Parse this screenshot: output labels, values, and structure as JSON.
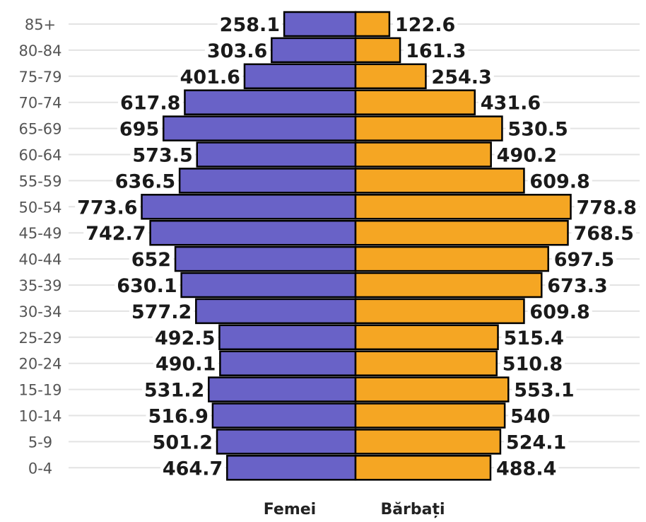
{
  "colors": {
    "female": "#6962c7",
    "male": "#f5a623",
    "grid": "#e3e3e3"
  },
  "legend": {
    "female": "Femei",
    "male": "Bărbați"
  },
  "chart_data": {
    "type": "bar",
    "orientation": "horizontal",
    "subtype": "population-pyramid",
    "categories": [
      "85+",
      "80-84",
      "75-79",
      "70-74",
      "65-69",
      "60-64",
      "55-59",
      "50-54",
      "45-49",
      "40-44",
      "35-39",
      "30-34",
      "25-29",
      "20-24",
      "15-19",
      "10-14",
      "5-9",
      "0-4"
    ],
    "series": [
      {
        "name": "Femei",
        "side": "left",
        "values": [
          258.1,
          303.6,
          401.6,
          617.8,
          695,
          573.5,
          636.5,
          773.6,
          742.7,
          652,
          630.1,
          577.2,
          492.5,
          490.1,
          531.2,
          516.9,
          501.2,
          464.7
        ],
        "labels": [
          "258.1",
          "303.6",
          "401.6",
          "617.8",
          "695",
          "573.5",
          "636.5",
          "773.6",
          "742.7",
          "652",
          "630.1",
          "577.2",
          "492.5",
          "490.1",
          "531.2",
          "516.9",
          "501.2",
          "464.7"
        ]
      },
      {
        "name": "Bărbați",
        "side": "right",
        "values": [
          122.6,
          161.3,
          254.3,
          431.6,
          530.5,
          490.2,
          609.8,
          778.8,
          768.5,
          697.5,
          673.3,
          609.8,
          515.4,
          510.8,
          553.1,
          540,
          524.1,
          488.4
        ],
        "labels": [
          "122.6",
          "161.3",
          "254.3",
          "431.6",
          "530.5",
          "490.2",
          "609.8",
          "778.8",
          "768.5",
          "697.5",
          "673.3",
          "609.8",
          "515.4",
          "510.8",
          "553.1",
          "540",
          "524.1",
          "488.4"
        ]
      }
    ],
    "grid": true,
    "legend_position": "bottom"
  }
}
